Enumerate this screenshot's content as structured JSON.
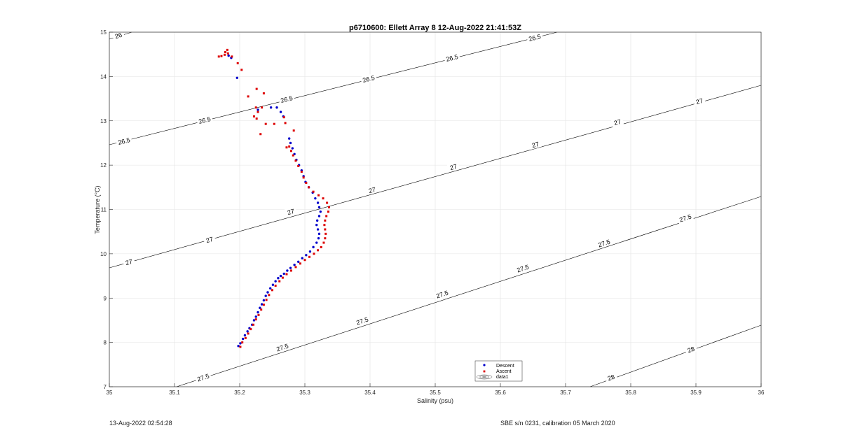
{
  "chart_data": {
    "type": "scatter",
    "title": "p6710600: Ellett Array 8 12-Aug-2022 21:41:53Z",
    "xlabel": "Salinity (psu)",
    "ylabel": "Temperature (°C)",
    "xlim": [
      35,
      36
    ],
    "ylim": [
      7,
      15
    ],
    "xticks": [
      35,
      35.1,
      35.2,
      35.3,
      35.4,
      35.5,
      35.6,
      35.7,
      35.8,
      35.9,
      36
    ],
    "xtick_labels": [
      "35",
      "35.1",
      "35.2",
      "35.3",
      "35.4",
      "35.5",
      "35.6",
      "35.7",
      "35.8",
      "35.9",
      "36"
    ],
    "yticks": [
      7,
      8,
      9,
      10,
      11,
      12,
      13,
      14,
      15
    ],
    "ytick_labels": [
      "7",
      "8",
      "9",
      "10",
      "11",
      "12",
      "13",
      "14",
      "15"
    ],
    "grid": true,
    "legend_position": "bottom-center",
    "series": [
      {
        "name": "Descent",
        "color": "#0000cc",
        "points": [
          [
            35.198,
            7.92
          ],
          [
            35.201,
            7.98
          ],
          [
            35.205,
            8.08
          ],
          [
            35.208,
            8.16
          ],
          [
            35.212,
            8.25
          ],
          [
            35.215,
            8.32
          ],
          [
            35.219,
            8.4
          ],
          [
            35.222,
            8.5
          ],
          [
            35.225,
            8.58
          ],
          [
            35.228,
            8.68
          ],
          [
            35.231,
            8.78
          ],
          [
            35.234,
            8.86
          ],
          [
            35.237,
            8.95
          ],
          [
            35.24,
            9.05
          ],
          [
            35.243,
            9.13
          ],
          [
            35.247,
            9.22
          ],
          [
            35.251,
            9.3
          ],
          [
            35.255,
            9.38
          ],
          [
            35.259,
            9.45
          ],
          [
            35.263,
            9.5
          ],
          [
            35.268,
            9.55
          ],
          [
            35.273,
            9.62
          ],
          [
            35.278,
            9.68
          ],
          [
            35.284,
            9.75
          ],
          [
            35.29,
            9.82
          ],
          [
            35.296,
            9.9
          ],
          [
            35.302,
            9.97
          ],
          [
            35.308,
            10.05
          ],
          [
            35.313,
            10.15
          ],
          [
            35.318,
            10.25
          ],
          [
            35.321,
            10.35
          ],
          [
            35.322,
            10.45
          ],
          [
            35.32,
            10.55
          ],
          [
            35.318,
            10.65
          ],
          [
            35.319,
            10.75
          ],
          [
            35.322,
            10.85
          ],
          [
            35.324,
            10.95
          ],
          [
            35.322,
            11.05
          ],
          [
            35.32,
            11.15
          ],
          [
            35.316,
            11.25
          ],
          [
            35.312,
            11.38
          ],
          [
            35.306,
            11.5
          ],
          [
            35.301,
            11.62
          ],
          [
            35.298,
            11.75
          ],
          [
            35.295,
            11.88
          ],
          [
            35.291,
            12.0
          ],
          [
            35.287,
            12.12
          ],
          [
            35.284,
            12.25
          ],
          [
            35.281,
            12.38
          ],
          [
            35.278,
            12.5
          ],
          [
            35.276,
            12.6
          ],
          [
            35.267,
            13.1
          ],
          [
            35.263,
            13.2
          ],
          [
            35.257,
            13.3
          ],
          [
            35.248,
            13.3
          ],
          [
            35.228,
            13.25
          ],
          [
            35.196,
            13.97
          ],
          [
            35.187,
            14.42
          ],
          [
            35.183,
            14.47
          ]
        ]
      },
      {
        "name": "Ascent",
        "color": "#dd0000",
        "points": [
          [
            35.201,
            7.9
          ],
          [
            35.204,
            8.0
          ],
          [
            35.209,
            8.1
          ],
          [
            35.213,
            8.2
          ],
          [
            35.217,
            8.3
          ],
          [
            35.221,
            8.4
          ],
          [
            35.225,
            8.52
          ],
          [
            35.229,
            8.62
          ],
          [
            35.233,
            8.74
          ],
          [
            35.237,
            8.85
          ],
          [
            35.241,
            8.96
          ],
          [
            35.245,
            9.07
          ],
          [
            35.25,
            9.18
          ],
          [
            35.255,
            9.28
          ],
          [
            35.261,
            9.38
          ],
          [
            35.266,
            9.46
          ],
          [
            35.272,
            9.54
          ],
          [
            35.279,
            9.62
          ],
          [
            35.286,
            9.7
          ],
          [
            35.293,
            9.78
          ],
          [
            35.3,
            9.86
          ],
          [
            35.307,
            9.93
          ],
          [
            35.314,
            10.0
          ],
          [
            35.32,
            10.08
          ],
          [
            35.325,
            10.15
          ],
          [
            35.329,
            10.25
          ],
          [
            35.331,
            10.35
          ],
          [
            35.332,
            10.45
          ],
          [
            35.331,
            10.55
          ],
          [
            35.33,
            10.65
          ],
          [
            35.331,
            10.75
          ],
          [
            35.333,
            10.85
          ],
          [
            35.336,
            10.95
          ],
          [
            35.337,
            11.05
          ],
          [
            35.334,
            11.15
          ],
          [
            35.328,
            11.25
          ],
          [
            35.321,
            11.32
          ],
          [
            35.313,
            11.4
          ],
          [
            35.306,
            11.5
          ],
          [
            35.302,
            11.6
          ],
          [
            35.298,
            11.72
          ],
          [
            35.295,
            11.85
          ],
          [
            35.29,
            11.98
          ],
          [
            35.286,
            12.1
          ],
          [
            35.282,
            12.22
          ],
          [
            35.279,
            12.32
          ],
          [
            35.276,
            12.42
          ],
          [
            35.272,
            12.4
          ],
          [
            35.283,
            12.78
          ],
          [
            35.27,
            12.95
          ],
          [
            35.268,
            13.08
          ],
          [
            35.253,
            12.93
          ],
          [
            35.24,
            12.93
          ],
          [
            35.232,
            12.7
          ],
          [
            35.226,
            13.05
          ],
          [
            35.222,
            13.1
          ],
          [
            35.228,
            13.2
          ],
          [
            35.234,
            13.3
          ],
          [
            35.225,
            13.3
          ],
          [
            35.237,
            13.62
          ],
          [
            35.226,
            13.72
          ],
          [
            35.213,
            13.55
          ],
          [
            35.203,
            14.15
          ],
          [
            35.197,
            14.3
          ],
          [
            35.188,
            14.45
          ],
          [
            35.182,
            14.52
          ],
          [
            35.178,
            14.55
          ],
          [
            35.181,
            14.6
          ],
          [
            35.177,
            14.49
          ],
          [
            35.172,
            14.46
          ],
          [
            35.168,
            14.45
          ]
        ]
      }
    ],
    "contours": [
      {
        "value": "26",
        "labels": [
          "26"
        ]
      },
      {
        "value": "26.5",
        "labels": [
          "26.5",
          "26.5",
          "26.5",
          "26.5",
          "26.5",
          "26.5"
        ]
      },
      {
        "value": "27",
        "labels": [
          "27",
          "27",
          "27",
          "27",
          "27",
          "27",
          "27",
          "27",
          "27"
        ]
      },
      {
        "value": "27.5",
        "labels": [
          "27.5",
          "27.5",
          "27.5",
          "27.5",
          "27.5",
          "27.5",
          "27.5",
          "27.5"
        ]
      },
      {
        "value": "28",
        "labels": [
          "28",
          "28"
        ]
      }
    ],
    "legend": {
      "entries": [
        "Descent",
        "Ascent",
        "data1"
      ]
    }
  },
  "footer": {
    "left": "13-Aug-2022 02:54:28",
    "right": "SBE s/n 0231, calibration 05 March 2020"
  }
}
